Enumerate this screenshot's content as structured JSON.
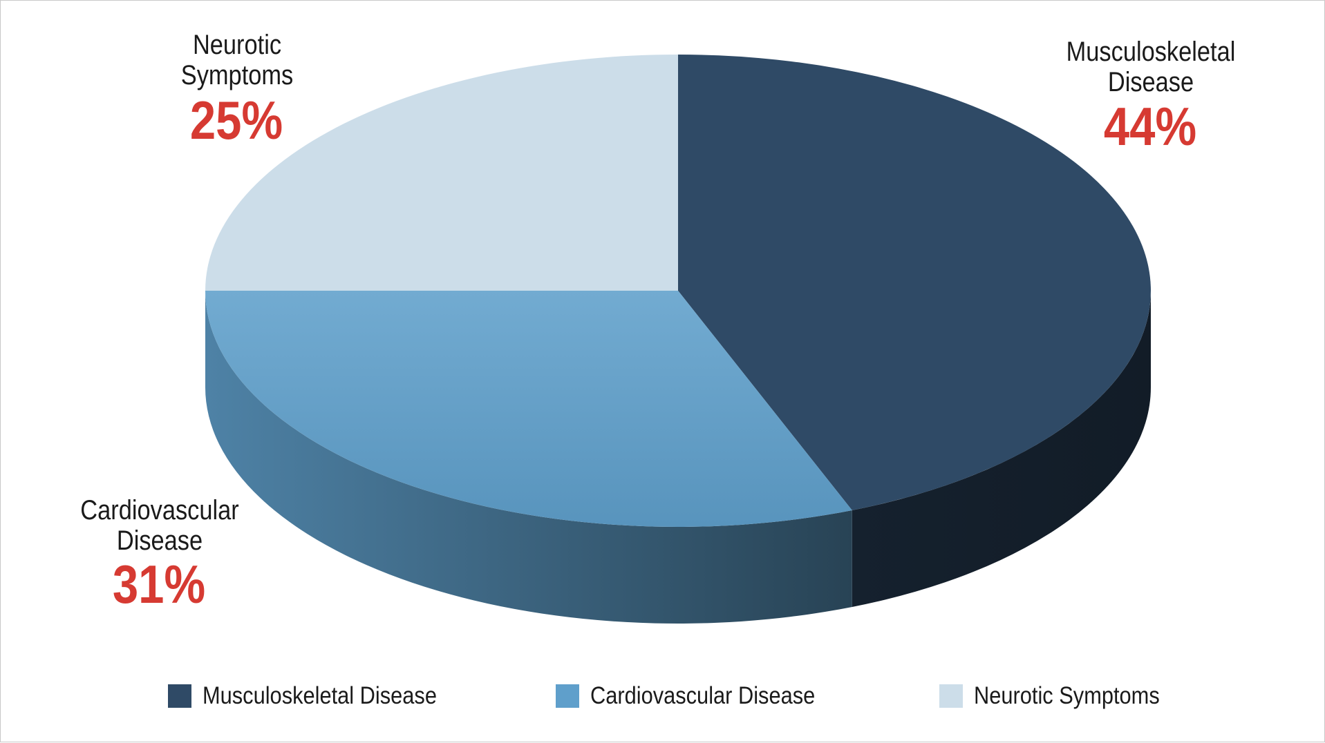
{
  "chart_data": {
    "type": "pie",
    "title": "",
    "style": "3d",
    "legend_position": "bottom",
    "slices": [
      {
        "key": "musculoskeletal",
        "label_lines": [
          "Musculoskeletal",
          "Disease"
        ],
        "legend": "Musculoskeletal Disease",
        "value": 44,
        "value_label": "44%",
        "color": "#2f4a66"
      },
      {
        "key": "cardiovascular",
        "label_lines": [
          "Cardiovascular",
          "Disease"
        ],
        "legend": "Cardiovascular Disease",
        "value": 31,
        "value_label": "31%",
        "color": "#5f9fcb"
      },
      {
        "key": "neurotic",
        "label_lines": [
          "Neurotic",
          "Symptoms"
        ],
        "legend": "Neurotic Symptoms",
        "value": 25,
        "value_label": "25%",
        "color": "#ccdde9"
      }
    ],
    "percent_label_color": "#d63a32"
  }
}
